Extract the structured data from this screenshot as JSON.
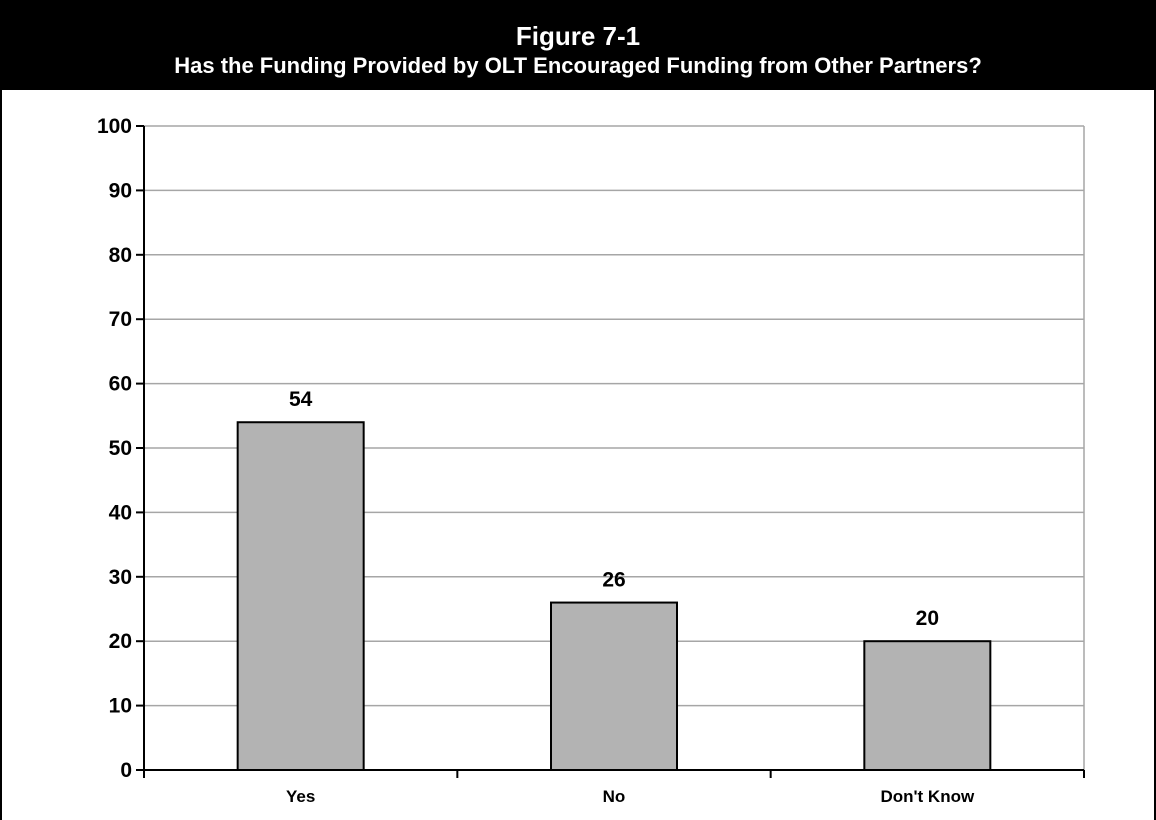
{
  "chart_data": {
    "type": "bar",
    "title": "Figure 7-1",
    "subtitle": "Has the Funding Provided by OLT Encouraged Funding from Other Partners?",
    "xlabel": "",
    "ylabel": "",
    "categories": [
      "Yes",
      "No",
      "Don't Know"
    ],
    "values": [
      54,
      26,
      20
    ],
    "data_labels": [
      "54",
      "26",
      "20"
    ],
    "ylim": [
      0,
      100
    ],
    "yticks": [
      0,
      10,
      20,
      30,
      40,
      50,
      60,
      70,
      80,
      90,
      100
    ],
    "ytick_labels": [
      "0",
      "10",
      "20",
      "30",
      "40",
      "50",
      "60",
      "70",
      "80",
      "90",
      "100"
    ],
    "grid": true,
    "legend": "none",
    "colors": {
      "bar_fill": "#b3b3b3",
      "bar_stroke": "#000000",
      "grid": "#a6a6a6",
      "axis": "#000000",
      "header_bg": "#000000",
      "header_text": "#ffffff"
    }
  }
}
